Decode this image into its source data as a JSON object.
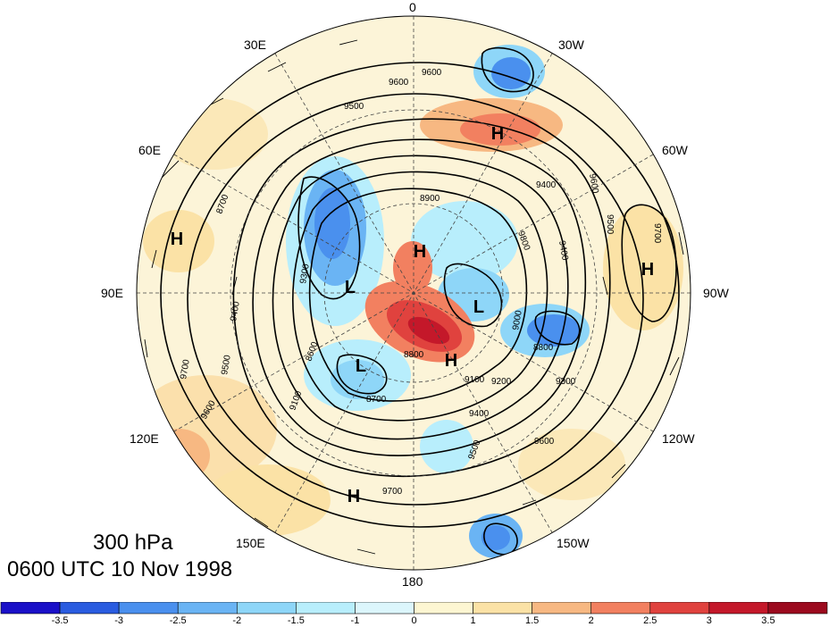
{
  "title": {
    "level": "300 hPa",
    "time": "0600 UTC 10 Nov 1998"
  },
  "longitude_labels": [
    "0",
    "30W",
    "60W",
    "90W",
    "120W",
    "150W",
    "180",
    "150E",
    "120E",
    "90E",
    "60E",
    "30E"
  ],
  "pressure_centers": [
    {
      "type": "H",
      "id": "h-north-atlantic"
    },
    {
      "type": "H",
      "id": "h-north-america"
    },
    {
      "type": "H",
      "id": "h-central-asia"
    },
    {
      "type": "H",
      "id": "h-pacific"
    },
    {
      "type": "H",
      "id": "h-arctic"
    },
    {
      "type": "H",
      "id": "h-canada-arctic"
    },
    {
      "type": "L",
      "id": "l-siberia"
    },
    {
      "type": "L",
      "id": "l-east-siberia"
    },
    {
      "type": "L",
      "id": "l-canada"
    }
  ],
  "contour_labels": [
    "9600",
    "9600",
    "9500",
    "9400",
    "9300",
    "9200",
    "9100",
    "9000",
    "8900",
    "8800",
    "8700",
    "8600",
    "8700",
    "8800",
    "9600",
    "9500",
    "9400",
    "9700",
    "9600",
    "9500",
    "9400",
    "9700",
    "9400",
    "9500",
    "9600",
    "9100",
    "9300",
    "9700",
    "9800"
  ],
  "colorbar": {
    "ticks": [
      "-3.5",
      "-3",
      "-2.5",
      "-2",
      "-1.5",
      "-1",
      "0",
      "1",
      "1.5",
      "2",
      "2.5",
      "3",
      "3.5"
    ],
    "colors": [
      "#1a10c8",
      "#2a5ce0",
      "#4a90ee",
      "#6ab4f4",
      "#8ed6f8",
      "#b8eefc",
      "#dcf6fc",
      "#fdf6d2",
      "#fbe2a6",
      "#f7b882",
      "#f28060",
      "#e0423e",
      "#c4182a",
      "#9c0a1e"
    ]
  },
  "colors": {
    "contour": "#000000",
    "graticule": "#444444",
    "wind_barb": "#000000"
  }
}
